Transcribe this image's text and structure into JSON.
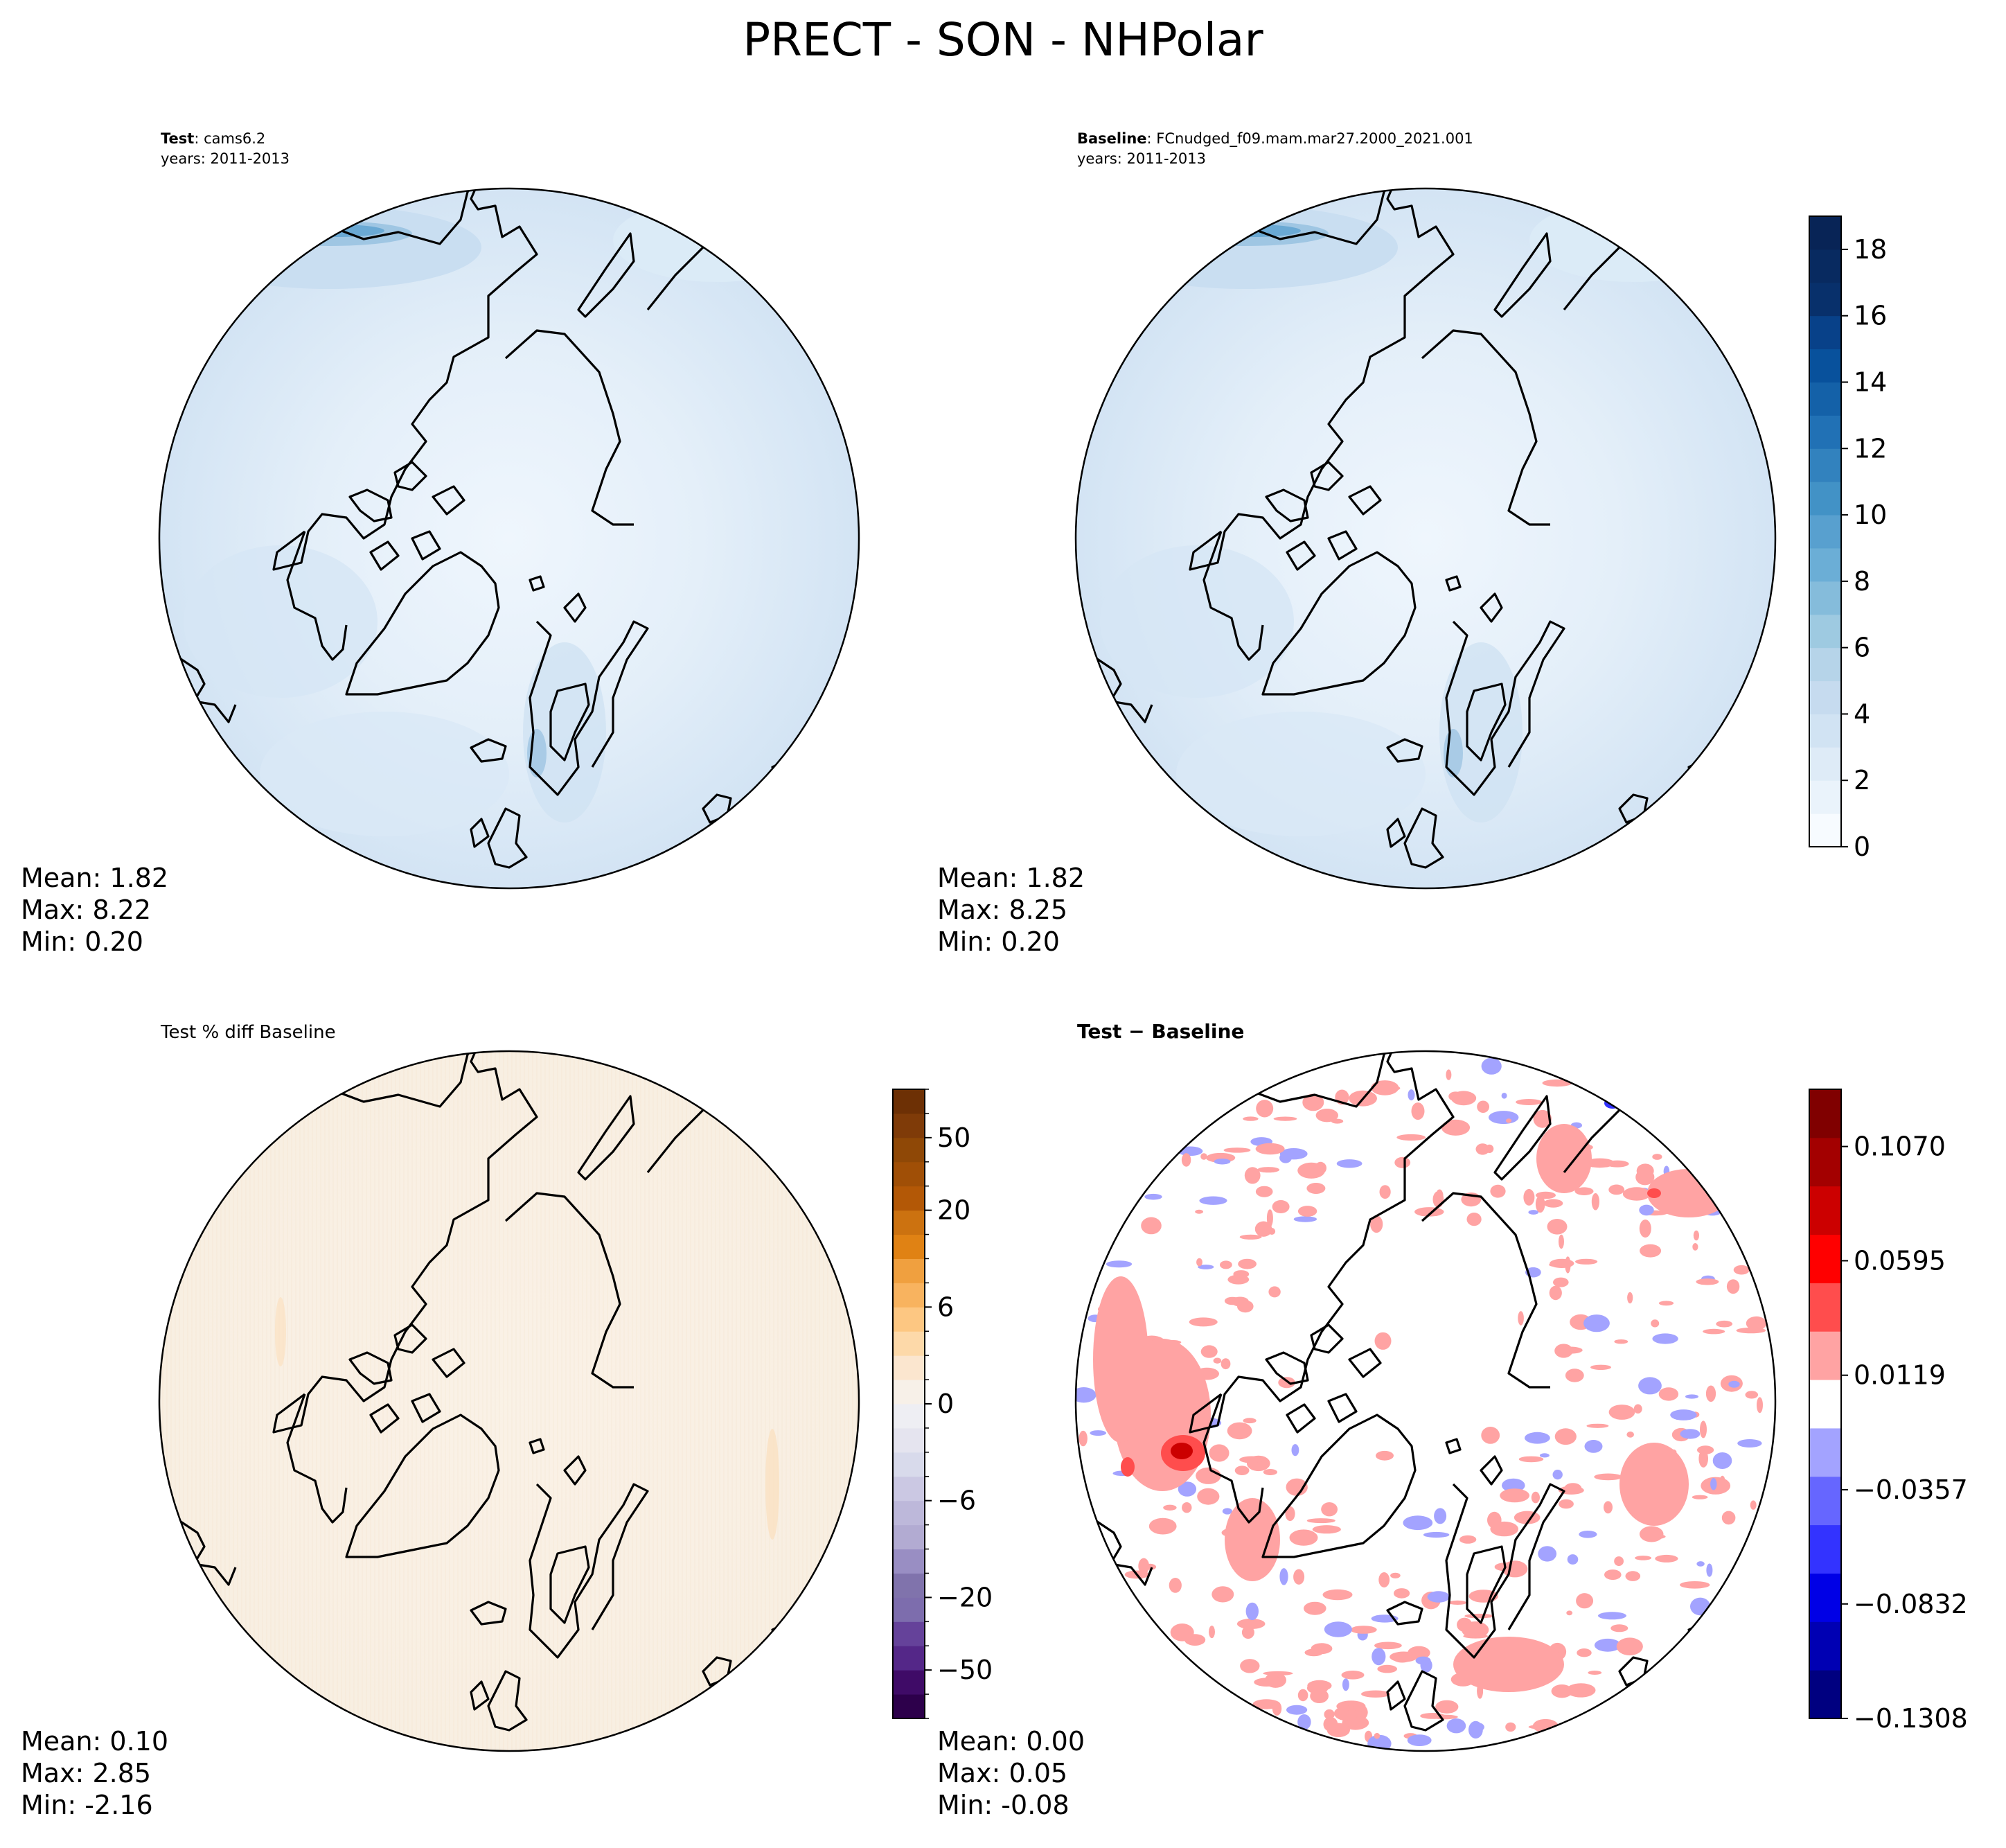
{
  "figure": {
    "title": "PRECT - SON - NHPolar"
  },
  "chart_data": [
    {
      "type": "heatmap",
      "panel": "test",
      "label_bold": "Test",
      "label_rest": ": cams6.2",
      "subtitle": "years: 2011-2013",
      "stats": {
        "mean": "Mean:  1.82",
        "max": "Max:  8.22",
        "min": "Min:  0.20"
      },
      "field_range": [
        0.2,
        8.22
      ],
      "colorbar": null
    },
    {
      "type": "heatmap",
      "panel": "baseline",
      "label_bold": "Baseline",
      "label_rest": ": FCnudged_f09.mam.mar27.2000_2021.001",
      "subtitle": "years: 2011-2013",
      "stats": {
        "mean": "Mean:  1.82",
        "max": "Max:  8.25",
        "min": "Min:  0.20"
      },
      "field_range": [
        0.2,
        8.25
      ],
      "colorbar": {
        "range": [
          0,
          19
        ],
        "levels": [
          0,
          1,
          2,
          3,
          4,
          5,
          6,
          7,
          8,
          9,
          10,
          11,
          12,
          13,
          14,
          15,
          16,
          17,
          18,
          19
        ],
        "ticks": [
          0,
          2,
          4,
          6,
          8,
          10,
          12,
          14,
          16,
          18
        ],
        "tick_labels": [
          "0",
          "2",
          "4",
          "6",
          "8",
          "10",
          "12",
          "14",
          "16",
          "18"
        ],
        "colors": [
          "#f7fbff",
          "#eaf3fb",
          "#deebf7",
          "#d1e3f3",
          "#c6dbef",
          "#b6d4e9",
          "#9ecae1",
          "#85bcdb",
          "#6baed6",
          "#58a0cf",
          "#4292c6",
          "#3282be",
          "#2171b5",
          "#1461a8",
          "#08519c",
          "#084189",
          "#08306b",
          "#082a60",
          "#082456"
        ]
      }
    },
    {
      "type": "heatmap",
      "panel": "percent-diff",
      "title": "Test % diff Baseline",
      "stats": {
        "mean": "Mean:  0.10",
        "max": "Max:  2.85",
        "min": "Min: -2.16"
      },
      "field_range": [
        -2.16,
        2.85
      ],
      "colorbar": {
        "levels": [
          -100,
          -75,
          -50,
          -40,
          -30,
          -20,
          -15,
          -10,
          -8,
          -6,
          -4,
          -2,
          -1,
          0,
          1,
          2,
          4,
          6,
          8,
          10,
          15,
          20,
          30,
          40,
          50,
          75,
          100
        ],
        "tick_labels": [
          "−50",
          "−20",
          "−6",
          "0",
          "6",
          "20",
          "50"
        ],
        "tick_values": [
          -50,
          -20,
          -6,
          0,
          6,
          20,
          50
        ],
        "colors": [
          "#2d004b",
          "#3f0b67",
          "#542788",
          "#65429a",
          "#7d6dad",
          "#8073ac",
          "#998ec3",
          "#b2abd2",
          "#bdb8da",
          "#cbc8e3",
          "#d8daeb",
          "#e5e4ef",
          "#eeeef3",
          "#f7f0e8",
          "#fbe6cf",
          "#fdd9a9",
          "#fdc782",
          "#f8b35f",
          "#f0a03f",
          "#e08214",
          "#cc7210",
          "#b35806",
          "#a04f06",
          "#8f4806",
          "#7f3b08",
          "#6d3005"
        ]
      }
    },
    {
      "type": "heatmap",
      "panel": "abs-diff",
      "title_bold": "Test − Baseline",
      "stats": {
        "mean": "Mean:  0.00",
        "max": "Max:  0.05",
        "min": "Min: -0.08"
      },
      "field_range": [
        -0.08,
        0.05
      ],
      "colorbar": {
        "range": [
          -0.1308,
          0.1308
        ],
        "tick_values": [
          -0.1308,
          -0.0832,
          -0.0357,
          0.0119,
          0.0595,
          0.107
        ],
        "tick_labels": [
          "−0.1308",
          "−0.0832",
          "−0.0357",
          "0.0119",
          "0.0595",
          "0.1070"
        ],
        "colors": [
          "#000080",
          "#0000b3",
          "#0000e6",
          "#3333ff",
          "#6666ff",
          "#a3a3ff",
          "#ffffff",
          "#ffa3a3",
          "#ff4d4d",
          "#ff0000",
          "#cc0000",
          "#a30000",
          "#800000"
        ]
      }
    }
  ]
}
